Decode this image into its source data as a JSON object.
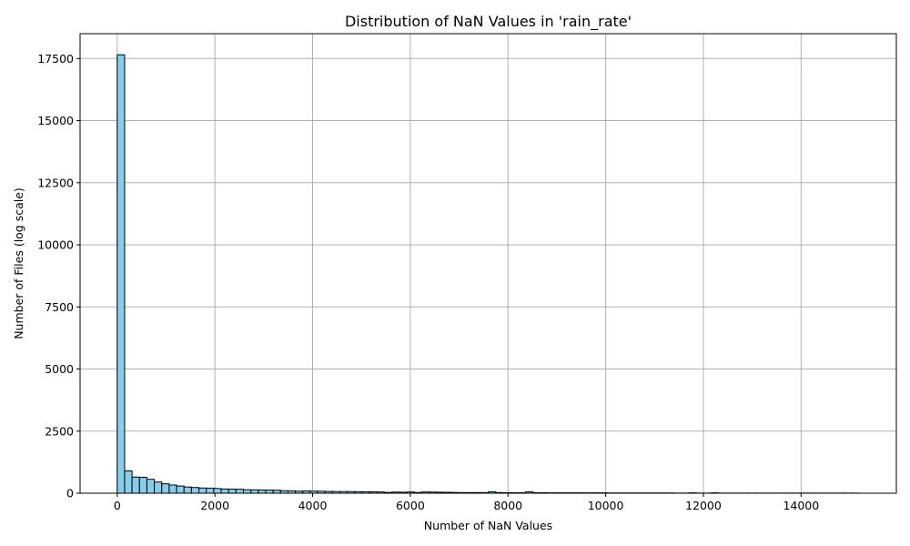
{
  "chart_data": {
    "type": "bar",
    "title": "Distribution of NaN Values in 'rain_rate'",
    "xlabel": "Number of NaN Values",
    "ylabel": "Number of Files (log scale)",
    "xlim": [
      -760,
      15950
    ],
    "ylim": [
      0,
      18500
    ],
    "xticks": [
      0,
      2000,
      4000,
      6000,
      8000,
      10000,
      12000,
      14000
    ],
    "yticks": [
      0,
      2500,
      5000,
      7500,
      10000,
      12500,
      15000,
      17500
    ],
    "grid": true,
    "bin_width": 152,
    "bar_fill": "#87ceeb",
    "bar_edge": "#000000",
    "series": [
      {
        "x": [
          0,
          152,
          304,
          456,
          608,
          760,
          912,
          1064,
          1216,
          1368,
          1520,
          1672,
          1824,
          1976,
          2128,
          2280,
          2432,
          2584,
          2736,
          2888,
          3040,
          3192,
          3344,
          3496,
          3648,
          3800,
          3952,
          4104,
          4256,
          4408,
          4560,
          4712,
          4864,
          5016,
          5168,
          5320,
          5472,
          5624,
          5776,
          5928,
          6080,
          6232,
          6384,
          6536,
          6688,
          6840,
          6992,
          7144,
          7296,
          7448,
          7600,
          7752,
          7904,
          8056,
          8208,
          8360,
          8512,
          8664,
          8816,
          8968,
          9120,
          9272,
          9424,
          9576,
          9728,
          9880,
          10032,
          10184,
          10336,
          10488,
          10640,
          10792,
          10944,
          11096,
          11248,
          11400,
          11552,
          11704,
          11856,
          12008,
          12160,
          12312,
          12464,
          12616,
          12768,
          12920,
          13072,
          13224,
          13376,
          13528,
          13680,
          13832,
          13984,
          14136,
          14288,
          14440,
          14592,
          14744,
          14896,
          15048
        ],
        "values": [
          17650,
          900,
          650,
          640,
          560,
          450,
          380,
          330,
          290,
          250,
          230,
          210,
          205,
          190,
          170,
          165,
          160,
          140,
          135,
          130,
          125,
          120,
          100,
          95,
          80,
          90,
          85,
          80,
          70,
          70,
          65,
          65,
          60,
          60,
          55,
          50,
          30,
          45,
          40,
          50,
          30,
          50,
          45,
          40,
          35,
          30,
          25,
          25,
          25,
          25,
          60,
          25,
          20,
          20,
          20,
          55,
          20,
          20,
          15,
          15,
          15,
          15,
          15,
          15,
          15,
          15,
          10,
          10,
          10,
          10,
          10,
          10,
          10,
          10,
          10,
          5,
          5,
          15,
          5,
          5,
          15,
          5,
          5,
          5,
          5,
          5,
          5,
          5,
          5,
          5,
          5,
          5,
          5,
          5,
          5,
          5,
          5,
          5,
          5,
          5
        ]
      }
    ]
  }
}
